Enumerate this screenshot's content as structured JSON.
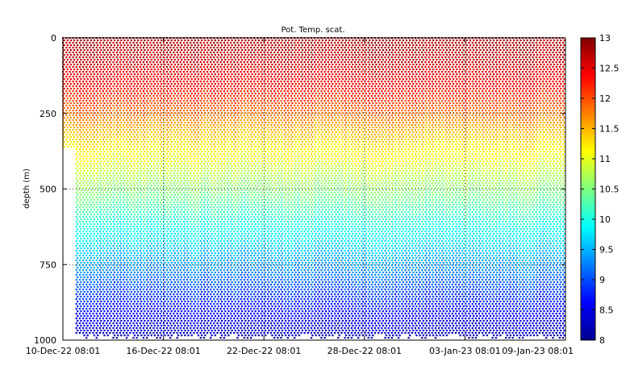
{
  "chart_data": {
    "type": "scatter",
    "title": "Pot. Temp. scat.",
    "xlabel": "",
    "ylabel": "depth (m)",
    "x_ticks": [
      "10-Dec-22 08:01",
      "16-Dec-22 08:01",
      "22-Dec-22 08:01",
      "28-Dec-22 08:01",
      "03-Jan-23 08:01",
      "09-Jan-23 08:01"
    ],
    "x_range_days": [
      0,
      30
    ],
    "y_ticks": [
      "0",
      "250",
      "500",
      "750",
      "1000"
    ],
    "ylim": [
      1000,
      0
    ],
    "grid": true,
    "colorbar": {
      "min": 8,
      "max": 13,
      "ticks": [
        "8",
        "8.5",
        "9",
        "9.5",
        "10",
        "10.5",
        "11",
        "11.5",
        "12",
        "12.5",
        "13"
      ],
      "colormap": "jet"
    },
    "profile_structure": {
      "mixed_layer_depth": 300,
      "surface_temp": 12.8,
      "temp_at_300m": 11.5,
      "temp_at_1000m": 8.2,
      "first_day_max_depth": 360
    }
  }
}
